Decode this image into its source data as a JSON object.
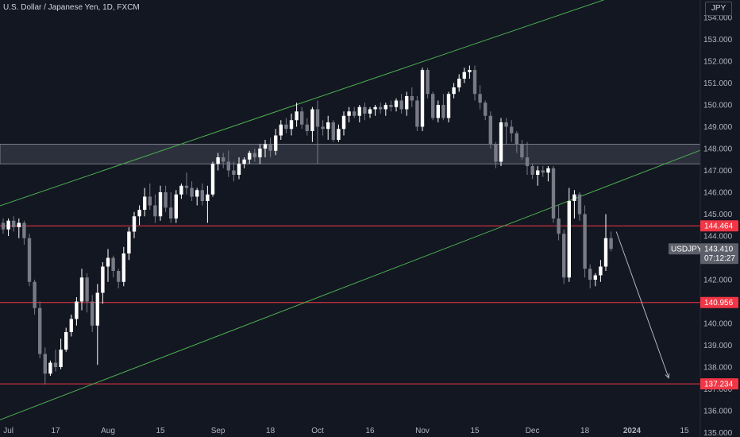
{
  "header": {
    "title": "U.S. Dollar / Japanese Yen, 1D, FXCM",
    "currency": "JPY"
  },
  "colors": {
    "background": "#131722",
    "candle_up": "#ffffff",
    "candle_down": "#787b86",
    "channel": "#4caf50",
    "level_line": "#f23645",
    "zone_fill": "#363a45",
    "zone_border": "#787b86",
    "axis_text": "#b2b5be"
  },
  "price_tags": {
    "symbol_label": "USDJPY",
    "last_price": "143.410",
    "countdown": "07:12:27",
    "levels": [
      "144.464",
      "140.956",
      "137.234"
    ]
  },
  "chart_data": {
    "type": "candlestick",
    "title": "U.S. Dollar / Japanese Yen, 1D, FXCM",
    "ylim": [
      134.8,
      154.8
    ],
    "y_ticks": [
      "135.000",
      "136.000",
      "137.000",
      "138.000",
      "139.000",
      "140.000",
      "141.000",
      "142.000",
      "143.000",
      "144.000",
      "145.000",
      "146.000",
      "147.000",
      "148.000",
      "149.000",
      "150.000",
      "151.000",
      "152.000",
      "153.000",
      "154.000"
    ],
    "x_ticks": [
      {
        "label": "Jul",
        "i": 1
      },
      {
        "label": "17",
        "i": 10
      },
      {
        "label": "Aug",
        "i": 20
      },
      {
        "label": "15",
        "i": 30
      },
      {
        "label": "Sep",
        "i": 41
      },
      {
        "label": "18",
        "i": 51
      },
      {
        "label": "Oct",
        "i": 60
      },
      {
        "label": "16",
        "i": 70
      },
      {
        "label": "Nov",
        "i": 80
      },
      {
        "label": "15",
        "i": 90
      },
      {
        "label": "Dec",
        "i": 101
      },
      {
        "label": "18",
        "i": 111
      },
      {
        "label": "2024",
        "i": 120
      },
      {
        "label": "15",
        "i": 130
      }
    ],
    "candles": [
      [
        144.6,
        144.8,
        144.1,
        144.3
      ],
      [
        144.3,
        144.8,
        144.0,
        144.7
      ],
      [
        144.7,
        144.9,
        144.2,
        144.4
      ],
      [
        144.4,
        144.8,
        143.9,
        144.6
      ],
      [
        144.6,
        144.7,
        143.6,
        143.9
      ],
      [
        143.9,
        144.1,
        141.7,
        141.9
      ],
      [
        141.9,
        142.0,
        140.4,
        140.7
      ],
      [
        140.7,
        141.0,
        138.4,
        138.6
      ],
      [
        138.6,
        138.9,
        137.2,
        137.7
      ],
      [
        137.7,
        138.3,
        137.6,
        138.2
      ],
      [
        138.2,
        138.8,
        137.8,
        138.0
      ],
      [
        138.0,
        139.3,
        137.9,
        138.8
      ],
      [
        138.8,
        139.8,
        138.7,
        139.6
      ],
      [
        139.6,
        140.4,
        139.4,
        140.2
      ],
      [
        140.2,
        141.2,
        139.9,
        141.0
      ],
      [
        141.0,
        142.5,
        140.6,
        142.1
      ],
      [
        142.1,
        142.3,
        140.5,
        141.0
      ],
      [
        141.0,
        141.3,
        139.6,
        139.9
      ],
      [
        139.9,
        141.8,
        138.1,
        141.4
      ],
      [
        141.4,
        142.8,
        140.9,
        142.6
      ],
      [
        142.6,
        143.4,
        141.9,
        143.0
      ],
      [
        143.0,
        143.1,
        142.1,
        142.4
      ],
      [
        142.4,
        142.5,
        141.6,
        141.9
      ],
      [
        141.9,
        143.5,
        141.7,
        143.2
      ],
      [
        143.2,
        144.4,
        142.9,
        144.2
      ],
      [
        144.2,
        145.1,
        143.9,
        144.9
      ],
      [
        144.9,
        145.4,
        144.5,
        145.2
      ],
      [
        145.2,
        146.2,
        144.9,
        145.8
      ],
      [
        145.8,
        146.4,
        145.2,
        145.4
      ],
      [
        145.4,
        145.9,
        144.6,
        144.9
      ],
      [
        144.9,
        146.3,
        144.7,
        146.0
      ],
      [
        146.0,
        146.3,
        145.1,
        145.3
      ],
      [
        145.3,
        146.0,
        144.6,
        144.8
      ],
      [
        144.8,
        146.1,
        144.6,
        145.9
      ],
      [
        145.9,
        146.4,
        145.7,
        146.3
      ],
      [
        146.3,
        146.9,
        145.9,
        146.2
      ],
      [
        146.2,
        146.5,
        145.6,
        145.8
      ],
      [
        145.8,
        146.2,
        145.4,
        146.1
      ],
      [
        146.1,
        146.4,
        145.4,
        145.6
      ],
      [
        145.6,
        146.3,
        144.6,
        145.9
      ],
      [
        145.9,
        147.4,
        145.8,
        147.3
      ],
      [
        147.3,
        147.8,
        147.0,
        147.6
      ],
      [
        147.6,
        147.8,
        147.1,
        147.4
      ],
      [
        147.4,
        147.9,
        146.7,
        147.0
      ],
      [
        147.0,
        147.4,
        146.5,
        146.8
      ],
      [
        146.8,
        147.6,
        146.6,
        147.3
      ],
      [
        147.3,
        147.6,
        147.1,
        147.5
      ],
      [
        147.5,
        147.9,
        147.3,
        147.8
      ],
      [
        147.8,
        148.0,
        147.4,
        147.6
      ],
      [
        147.6,
        148.2,
        147.3,
        148.0
      ],
      [
        148.0,
        148.4,
        147.6,
        148.2
      ],
      [
        148.2,
        148.5,
        147.6,
        147.9
      ],
      [
        147.9,
        148.9,
        147.7,
        148.6
      ],
      [
        148.6,
        149.3,
        148.4,
        149.1
      ],
      [
        149.1,
        149.4,
        148.7,
        148.9
      ],
      [
        148.9,
        149.6,
        148.6,
        149.3
      ],
      [
        149.3,
        150.1,
        149.0,
        149.7
      ],
      [
        149.7,
        149.9,
        148.9,
        149.1
      ],
      [
        149.1,
        149.4,
        148.6,
        148.8
      ],
      [
        148.8,
        149.9,
        148.3,
        149.8
      ],
      [
        149.8,
        150.2,
        147.3,
        149.0
      ],
      [
        149.0,
        149.3,
        148.6,
        148.9
      ],
      [
        148.9,
        149.5,
        148.4,
        149.2
      ],
      [
        149.2,
        149.3,
        148.3,
        148.4
      ],
      [
        148.4,
        149.1,
        148.3,
        148.9
      ],
      [
        148.9,
        149.7,
        148.6,
        149.5
      ],
      [
        149.5,
        149.9,
        149.2,
        149.7
      ],
      [
        149.7,
        149.9,
        149.4,
        149.5
      ],
      [
        149.5,
        150.0,
        149.2,
        149.9
      ],
      [
        149.9,
        150.1,
        149.3,
        149.6
      ],
      [
        149.6,
        149.9,
        149.4,
        149.8
      ],
      [
        149.8,
        150.0,
        149.5,
        149.9
      ],
      [
        149.9,
        150.1,
        149.6,
        149.8
      ],
      [
        149.8,
        150.1,
        149.5,
        150.0
      ],
      [
        150.0,
        150.2,
        149.7,
        149.9
      ],
      [
        149.9,
        150.3,
        149.7,
        150.2
      ],
      [
        150.2,
        150.5,
        149.6,
        149.8
      ],
      [
        149.8,
        150.6,
        149.5,
        150.4
      ],
      [
        150.4,
        150.8,
        149.9,
        150.2
      ],
      [
        150.2,
        150.4,
        148.8,
        149.0
      ],
      [
        149.0,
        151.7,
        148.8,
        151.6
      ],
      [
        151.6,
        151.7,
        150.3,
        150.5
      ],
      [
        150.5,
        150.6,
        149.3,
        149.4
      ],
      [
        149.4,
        150.2,
        149.2,
        150.0
      ],
      [
        150.0,
        150.5,
        149.3,
        149.4
      ],
      [
        149.4,
        150.6,
        149.2,
        150.5
      ],
      [
        150.5,
        151.0,
        150.3,
        150.8
      ],
      [
        150.8,
        151.4,
        150.6,
        151.2
      ],
      [
        151.2,
        151.7,
        151.0,
        151.5
      ],
      [
        151.5,
        151.8,
        151.2,
        151.6
      ],
      [
        151.6,
        151.8,
        150.2,
        150.5
      ],
      [
        150.5,
        150.9,
        149.8,
        150.1
      ],
      [
        150.1,
        150.2,
        149.3,
        149.5
      ],
      [
        149.5,
        149.7,
        148.0,
        148.2
      ],
      [
        148.2,
        148.3,
        147.1,
        147.4
      ],
      [
        147.4,
        149.4,
        147.2,
        149.2
      ],
      [
        149.2,
        149.4,
        148.2,
        149.0
      ],
      [
        149.0,
        149.3,
        148.3,
        148.7
      ],
      [
        148.7,
        148.8,
        147.8,
        148.2
      ],
      [
        148.2,
        148.4,
        147.5,
        147.6
      ],
      [
        147.6,
        148.3,
        146.8,
        147.2
      ],
      [
        147.2,
        147.3,
        146.6,
        146.8
      ],
      [
        146.8,
        147.2,
        146.3,
        147.0
      ],
      [
        147.0,
        147.2,
        146.7,
        146.9
      ],
      [
        146.9,
        147.2,
        146.5,
        147.1
      ],
      [
        147.1,
        147.2,
        144.6,
        144.8
      ],
      [
        144.8,
        145.4,
        143.8,
        144.1
      ],
      [
        144.1,
        144.3,
        141.8,
        142.1
      ],
      [
        142.1,
        146.2,
        141.9,
        145.6
      ],
      [
        145.6,
        146.1,
        144.8,
        145.9
      ],
      [
        145.9,
        146.0,
        144.7,
        145.0
      ],
      [
        145.0,
        145.4,
        142.1,
        142.5
      ],
      [
        142.5,
        142.7,
        141.6,
        142.0
      ],
      [
        142.0,
        142.3,
        141.7,
        142.2
      ],
      [
        142.2,
        142.9,
        141.9,
        142.6
      ],
      [
        142.6,
        145.0,
        142.4,
        143.9
      ],
      [
        143.9,
        144.2,
        143.3,
        143.41
      ]
    ],
    "channel_lines": [
      {
        "name": "upper",
        "p1": [
          -1,
          145.35
        ],
        "p2": [
          117,
          155.0
        ]
      },
      {
        "name": "lower",
        "p1": [
          -1,
          135.55
        ],
        "p2": [
          142,
          148.75
        ]
      }
    ],
    "horizontal_levels": [
      144.464,
      140.956,
      137.234
    ],
    "zone": {
      "from": 147.3,
      "to": 148.2
    },
    "projection_arrow": {
      "from": [
        117,
        144.2
      ],
      "to": [
        127,
        137.5
      ]
    }
  }
}
